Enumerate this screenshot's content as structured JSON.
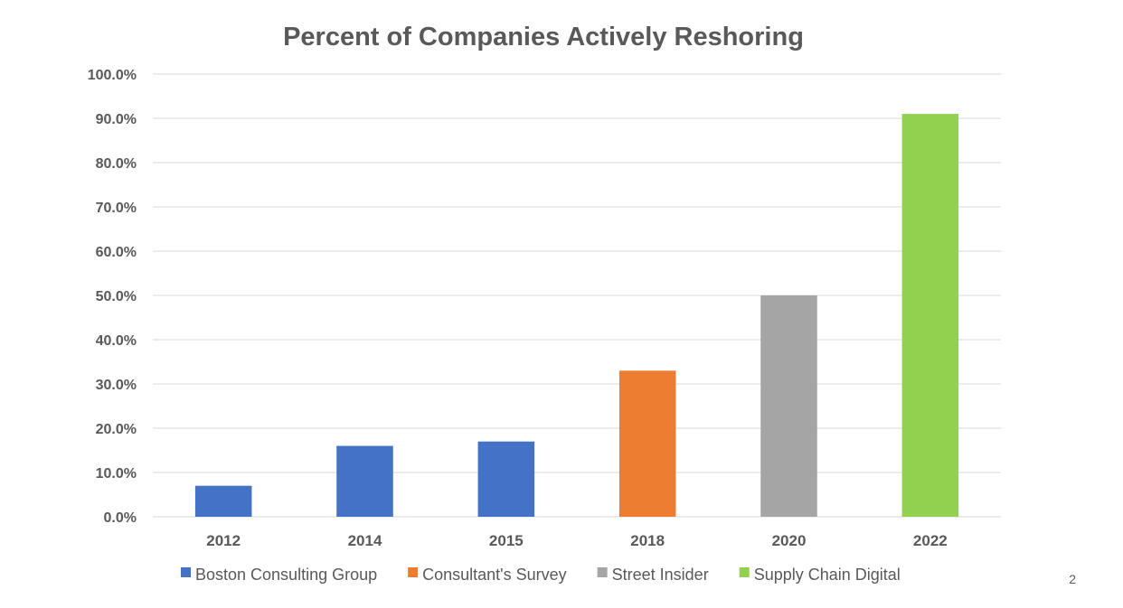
{
  "chart_data": {
    "type": "bar",
    "title": "Percent of Companies Actively Reshoring",
    "categories": [
      "2012",
      "2014",
      "2015",
      "2018",
      "2020",
      "2022"
    ],
    "values": [
      7.0,
      16.0,
      17.0,
      33.0,
      50.0,
      91.0
    ],
    "bar_sources": [
      "Boston Consulting Group",
      "Boston Consulting Group",
      "Boston Consulting Group",
      "Consultant's Survey",
      "Street Insider",
      "Supply Chain Digital"
    ],
    "ylim": [
      0,
      100
    ],
    "yticks": [
      0,
      10,
      20,
      30,
      40,
      50,
      60,
      70,
      80,
      90,
      100
    ],
    "ytick_labels": [
      "0.0%",
      "10.0%",
      "20.0%",
      "30.0%",
      "40.0%",
      "50.0%",
      "60.0%",
      "70.0%",
      "80.0%",
      "90.0%",
      "100.0%"
    ],
    "xlabel": "",
    "ylabel": "",
    "grid": true,
    "legend_position": "bottom",
    "legend": [
      {
        "name": "Boston Consulting Group",
        "color": "#4472c4"
      },
      {
        "name": "Consultant's Survey",
        "color": "#ed7d31"
      },
      {
        "name": "Street Insider",
        "color": "#a5a5a5"
      },
      {
        "name": "Supply Chain Digital",
        "color": "#92d050"
      }
    ]
  },
  "page_number": "2"
}
